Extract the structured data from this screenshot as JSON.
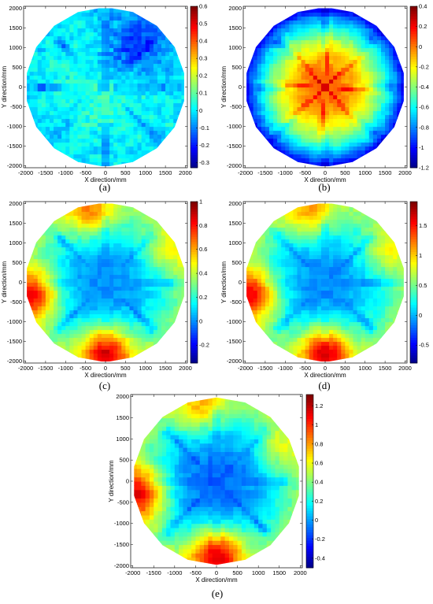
{
  "panels": [
    {
      "letter": "(a)",
      "chart_data": {
        "type": "heatmap",
        "description_visible": "circular surface deviation map",
        "xlabel": "X direction/mm",
        "ylabel": "Y direction/mm",
        "xticks": [
          "-2000",
          "-1500",
          "-1000",
          "-500",
          "0",
          "500",
          "1000",
          "1500",
          "2000"
        ],
        "yticks": [
          "2000",
          "1500",
          "1000",
          "500",
          "0",
          "-500",
          "-1000",
          "-1500",
          "-2000"
        ],
        "xlim": [
          -2050,
          2050
        ],
        "ylim": [
          -2050,
          2050
        ],
        "colorbar": {
          "range": [
            -0.33,
            0.6
          ],
          "ticks": [
            "0.6",
            "0.5",
            "0.4",
            "0.3",
            "0.2",
            "0.1",
            "0",
            "-0.1",
            "-0.2",
            "-0.3"
          ],
          "tick_values": [
            0.6,
            0.5,
            0.4,
            0.3,
            0.2,
            0.1,
            0,
            -0.1,
            -0.2,
            -0.3
          ]
        },
        "field": {
          "mean": -0.05,
          "edge": 0.0,
          "center": 0.05,
          "rim_hotspots": [],
          "topright_low": -0.2
        }
      }
    },
    {
      "letter": "(b)",
      "chart_data": {
        "type": "heatmap",
        "xlabel": "X direction/mm",
        "ylabel": "Y direction/mm",
        "xticks": [
          "-2000",
          "-1500",
          "-1000",
          "-500",
          "0",
          "500",
          "1000",
          "1500",
          "2000"
        ],
        "yticks": [
          "2000",
          "1500",
          "1000",
          "500",
          "0",
          "-500",
          "-1000",
          "-1500",
          "-2000"
        ],
        "xlim": [
          -2050,
          2050
        ],
        "ylim": [
          -2050,
          2050
        ],
        "colorbar": {
          "range": [
            -1.2,
            0.4
          ],
          "ticks": [
            "0.4",
            "0.2",
            "0",
            "-0.2",
            "-0.4",
            "-0.6",
            "-0.8",
            "-1",
            "-1.2"
          ],
          "tick_values": [
            0.4,
            0.2,
            0,
            -0.2,
            -0.4,
            -0.6,
            -0.8,
            -1,
            -1.2
          ]
        },
        "field": {
          "mean": -0.5,
          "edge": -1.0,
          "center": 0.05
        }
      }
    },
    {
      "letter": "(c)",
      "chart_data": {
        "type": "heatmap",
        "xlabel": "X direction/mm",
        "ylabel": "Y direction/mm",
        "xticks": [
          "-2000",
          "-1500",
          "-1000",
          "-500",
          "0",
          "500",
          "1000",
          "1500",
          "2000"
        ],
        "yticks": [
          "2000",
          "1500",
          "1000",
          "500",
          "0",
          "-500",
          "-1000",
          "-1500",
          "-2000"
        ],
        "xlim": [
          -2050,
          2050
        ],
        "ylim": [
          -2050,
          2050
        ],
        "colorbar": {
          "range": [
            -0.35,
            1.0
          ],
          "ticks": [
            "1",
            "0.8",
            "0.6",
            "0.4",
            "0.2",
            "0",
            "-0.2"
          ],
          "tick_values": [
            1,
            0.8,
            0.6,
            0.4,
            0.2,
            0,
            -0.2
          ]
        },
        "field": {
          "mean": 0.1,
          "edge": 0.35,
          "center": 0.0,
          "hot": [
            [
              0,
              -1800,
              0.95
            ],
            [
              -1900,
              -300,
              0.9
            ],
            [
              -400,
              1900,
              0.7
            ],
            [
              1700,
              900,
              0.5
            ]
          ]
        }
      }
    },
    {
      "letter": "(d)",
      "chart_data": {
        "type": "heatmap",
        "xlabel": "X direction/mm",
        "ylabel": "Y direction/mm",
        "xticks": [
          "-2000",
          "-1500",
          "-1000",
          "-500",
          "0",
          "500",
          "1000",
          "1500",
          "2000"
        ],
        "yticks": [
          "2000",
          "1500",
          "1000",
          "500",
          "0",
          "-500",
          "-1000",
          "-1500",
          "-2000"
        ],
        "xlim": [
          -2050,
          2050
        ],
        "ylim": [
          -2050,
          2050
        ],
        "colorbar": {
          "range": [
            -0.8,
            1.9
          ],
          "ticks": [
            "1.5",
            "1",
            "0.5",
            "0",
            "-0.5"
          ],
          "tick_values": [
            1.5,
            1,
            0.5,
            0,
            -0.5
          ]
        },
        "field": {
          "mean": 0.1,
          "edge": 0.6,
          "center": -0.1,
          "hot": [
            [
              0,
              -1800,
              1.8
            ],
            [
              -1900,
              -300,
              1.7
            ],
            [
              -400,
              1900,
              1.2
            ],
            [
              1700,
              900,
              0.9
            ]
          ]
        }
      }
    },
    {
      "letter": "(e)",
      "chart_data": {
        "type": "heatmap",
        "xlabel": "X direction/mm",
        "ylabel": "Y direction/mm",
        "xticks": [
          "-2000",
          "-1500",
          "-1000",
          "-500",
          "0",
          "500",
          "1000",
          "1500",
          "2000"
        ],
        "yticks": [
          "2000",
          "1500",
          "1000",
          "500",
          "0",
          "-500",
          "-1000",
          "-1500",
          "-2000"
        ],
        "xlim": [
          -2050,
          2050
        ],
        "ylim": [
          -2050,
          2050
        ],
        "colorbar": {
          "range": [
            -0.5,
            1.32
          ],
          "ticks": [
            "1.2",
            "1",
            "0.8",
            "0.6",
            "0.4",
            "0.2",
            "0",
            "-0.2",
            "-0.4"
          ],
          "tick_values": [
            1.2,
            1,
            0.8,
            0.6,
            0.4,
            0.2,
            0,
            -0.2,
            -0.4
          ]
        },
        "field": {
          "mean": 0.1,
          "edge": 0.45,
          "center": -0.1,
          "hot": [
            [
              0,
              -1800,
              1.25
            ],
            [
              -1900,
              -300,
              1.2
            ],
            [
              -400,
              1900,
              0.8
            ],
            [
              1700,
              900,
              0.6
            ]
          ]
        }
      }
    }
  ]
}
